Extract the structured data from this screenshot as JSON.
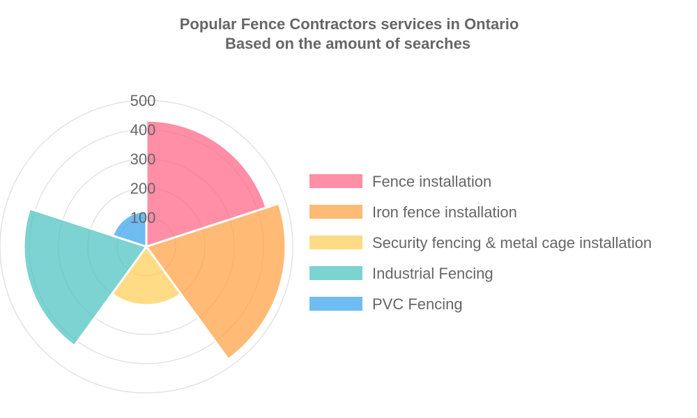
{
  "chart_data": {
    "type": "polarArea",
    "title": [
      "Popular Fence Contractors services in Ontario",
      "Based on the amount of searches"
    ],
    "categories": [
      "Fence installation",
      "Iron fence installation",
      "Security fencing & metal cage installation",
      "Industrial Fencing",
      "PVC Fencing"
    ],
    "values": [
      431,
      476,
      200,
      419,
      121
    ],
    "colors": [
      "#ff6384",
      "#ff9f40",
      "#ffcd56",
      "#4bc0c0",
      "#36a2eb"
    ],
    "r_range": [
      0,
      500
    ],
    "r_ticks": [
      "100",
      "200",
      "300",
      "400",
      "500"
    ],
    "grid": true,
    "legend_position": "right"
  }
}
